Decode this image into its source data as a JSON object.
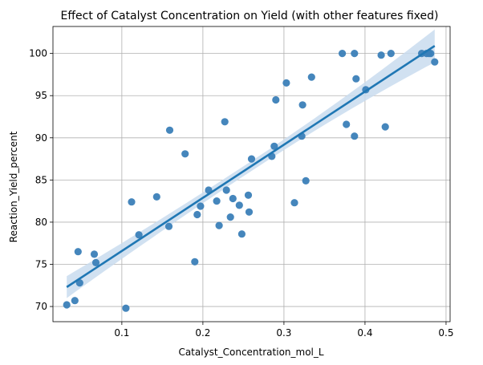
{
  "chart_data": {
    "type": "scatter",
    "title": "Effect of Catalyst Concentration on Yield (with other features fixed)",
    "xlabel": "Catalyst_Concentration_mol_L",
    "ylabel": "Reaction_Yield_percent",
    "xlim": [
      0.015,
      0.505
    ],
    "ylim": [
      68.2,
      103.2
    ],
    "x_ticks": [
      0.1,
      0.2,
      0.3,
      0.4,
      0.5
    ],
    "x_tick_labels": [
      "0.1",
      "0.2",
      "0.3",
      "0.4",
      "0.5"
    ],
    "y_ticks": [
      70,
      75,
      80,
      85,
      90,
      95,
      100
    ],
    "y_tick_labels": [
      "70",
      "75",
      "80",
      "85",
      "90",
      "95",
      "100"
    ],
    "grid": true,
    "colors": {
      "points": "#3b7fb8",
      "line": "#1f77b4",
      "band": "#c9dcee"
    },
    "series": [
      {
        "points": [
          [
            0.032,
            70.2
          ],
          [
            0.042,
            70.7
          ],
          [
            0.046,
            76.5
          ],
          [
            0.048,
            72.8
          ],
          [
            0.066,
            76.2
          ],
          [
            0.068,
            75.2
          ],
          [
            0.105,
            69.8
          ],
          [
            0.112,
            82.4
          ],
          [
            0.121,
            78.5
          ],
          [
            0.143,
            83.0
          ],
          [
            0.158,
            79.5
          ],
          [
            0.159,
            90.9
          ],
          [
            0.178,
            88.1
          ],
          [
            0.19,
            75.3
          ],
          [
            0.193,
            80.9
          ],
          [
            0.197,
            81.9
          ],
          [
            0.207,
            83.8
          ],
          [
            0.217,
            82.5
          ],
          [
            0.22,
            79.6
          ],
          [
            0.227,
            91.9
          ],
          [
            0.229,
            83.8
          ],
          [
            0.234,
            80.6
          ],
          [
            0.237,
            82.8
          ],
          [
            0.245,
            82.0
          ],
          [
            0.248,
            78.6
          ],
          [
            0.256,
            83.2
          ],
          [
            0.257,
            81.2
          ],
          [
            0.26,
            87.5
          ],
          [
            0.285,
            87.8
          ],
          [
            0.288,
            89.0
          ],
          [
            0.29,
            94.5
          ],
          [
            0.303,
            96.5
          ],
          [
            0.313,
            82.3
          ],
          [
            0.322,
            90.2
          ],
          [
            0.323,
            93.9
          ],
          [
            0.327,
            84.9
          ],
          [
            0.334,
            97.2
          ],
          [
            0.372,
            100.0
          ],
          [
            0.377,
            91.6
          ],
          [
            0.387,
            90.2
          ],
          [
            0.387,
            100.0
          ],
          [
            0.389,
            97.0
          ],
          [
            0.401,
            95.7
          ],
          [
            0.42,
            99.8
          ],
          [
            0.425,
            91.3
          ],
          [
            0.432,
            100.0
          ],
          [
            0.47,
            100.0
          ],
          [
            0.476,
            100.0
          ],
          [
            0.479,
            100.0
          ],
          [
            0.481,
            100.0
          ],
          [
            0.486,
            99.0
          ]
        ]
      }
    ],
    "regression": {
      "x": [
        0.032,
        0.486
      ],
      "y": [
        72.3,
        100.9
      ],
      "ci_lower": [
        71.0,
        98.9
      ],
      "ci_upper": [
        73.6,
        102.8
      ]
    }
  }
}
